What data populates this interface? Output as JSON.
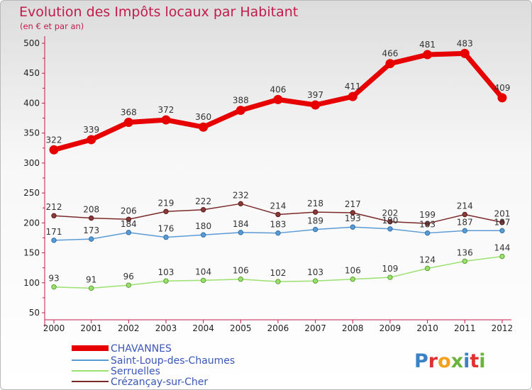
{
  "title": "Evolution des Impôts locaux par Habitant",
  "subtitle": "(en € et par an)",
  "logo_text": "Proxiti",
  "chart_data": {
    "type": "line",
    "title": "Evolution des Impôts locaux par Habitant",
    "subtitle": "(en € et par an)",
    "x": [
      "2000",
      "2001",
      "2002",
      "2003",
      "2004",
      "2005",
      "2006",
      "2007",
      "2008",
      "2009",
      "2010",
      "2011",
      "2012"
    ],
    "ylim": [
      50,
      500
    ],
    "yticks": [
      50,
      100,
      150,
      200,
      250,
      300,
      350,
      400,
      450,
      500
    ],
    "grid": false,
    "legend_position": "bottom-left",
    "series": [
      {
        "name": "CHAVANNES",
        "color": "#e60000",
        "values": [
          322,
          339,
          368,
          372,
          360,
          388,
          406,
          397,
          411,
          466,
          481,
          483,
          409
        ]
      },
      {
        "name": "Saint-Loup-des-Chaumes",
        "color": "#5b9bd5",
        "values": [
          171,
          173,
          184,
          176,
          180,
          184,
          183,
          189,
          193,
          190,
          183,
          187,
          187
        ]
      },
      {
        "name": "Serruelles",
        "color": "#9be070",
        "values": [
          93,
          91,
          96,
          103,
          104,
          106,
          102,
          103,
          106,
          109,
          124,
          136,
          144
        ]
      },
      {
        "name": "Crézançay-sur-Cher",
        "color": "#7b2a2a",
        "values": [
          212,
          208,
          206,
          219,
          222,
          232,
          214,
          218,
          217,
          202,
          199,
          214,
          201
        ]
      }
    ],
    "data_labels": [
      [
        "322",
        "339",
        "368",
        "372",
        "360",
        "388",
        "406",
        "397",
        "411",
        "466",
        "481",
        "483",
        "409"
      ],
      [
        "171",
        "173",
        "184",
        "176",
        "180",
        "184",
        "183",
        "189",
        "193",
        "190",
        "183",
        "187",
        "187"
      ],
      [
        "93",
        "91",
        "96",
        "103",
        "104",
        "106",
        "102",
        "103",
        "106",
        "109",
        "124",
        "136",
        "144"
      ],
      [
        "212",
        "208",
        "206",
        "219",
        "222",
        "232",
        "214",
        "218",
        "217",
        "202",
        "199",
        "214",
        "201"
      ]
    ]
  }
}
